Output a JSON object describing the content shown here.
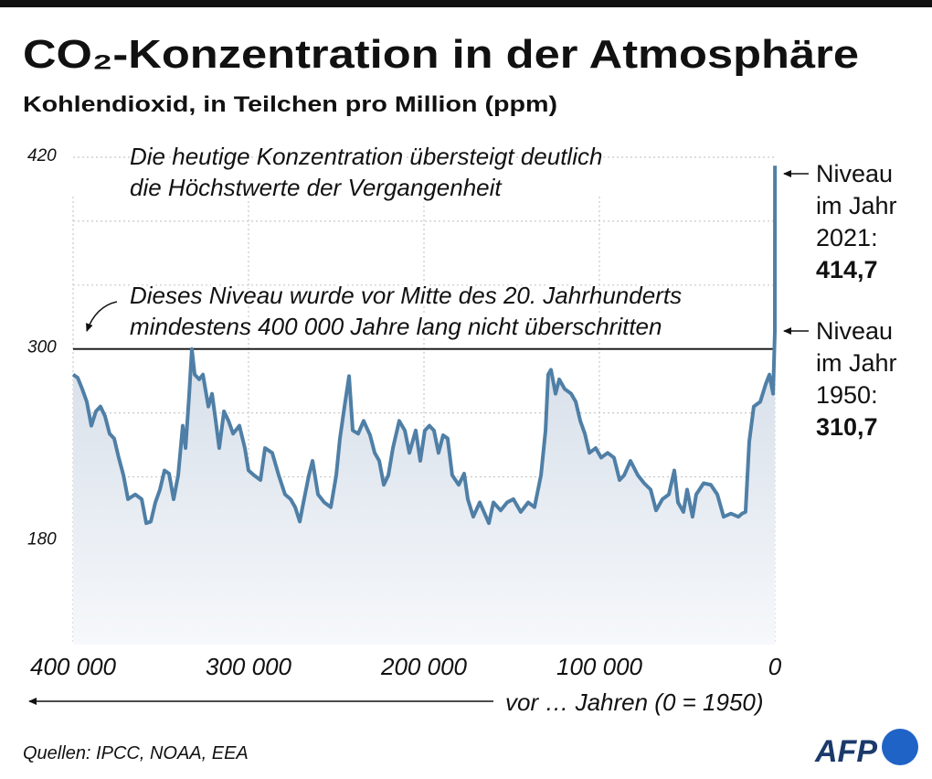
{
  "chart_data": {
    "type": "line",
    "title": "CO₂-Konzentration in der Atmosphäre",
    "subtitle": "Kohlendioxid, in Teilchen pro Million (ppm)",
    "xlabel": "vor … Jahren (0 = 1950)",
    "source": "Quellen: IPCC, NOAA, EEA",
    "logo": "AFP",
    "annotations": [
      [
        "Die heutige Konzentration übersteigt deutlich",
        "die Höchstwerte der Vergangenheit"
      ],
      [
        "Dieses Niveau wurde vor Mitte des 20. Jahrhunderts",
        "mindestens 400 000 Jahre lang nicht überschritten"
      ]
    ],
    "right_notes": [
      [
        "Niveau",
        "im Jahr",
        "2021:"
      ],
      [
        "Niveau",
        "im Jahr",
        "1950:"
      ]
    ],
    "color": "#4f7fa6",
    "x": [
      400000,
      397400,
      394800,
      392200,
      389600,
      387000,
      384400,
      381800,
      379200,
      376600,
      374000,
      371300,
      368700,
      364600,
      360900,
      358300,
      355700,
      353100,
      350500,
      347900,
      345300,
      342700,
      340100,
      337500,
      335900,
      333800,
      332300,
      330700,
      328100,
      326000,
      322900,
      320800,
      318700,
      316700,
      314000,
      311400,
      308800,
      305200,
      302100,
      300000,
      296900,
      293200,
      290600,
      286500,
      282800,
      279200,
      276000,
      273400,
      270800,
      268700,
      265600,
      263500,
      260400,
      256800,
      253100,
      250000,
      247900,
      245300,
      242700,
      240600,
      237500,
      234400,
      230700,
      228100,
      225500,
      222900,
      220300,
      217700,
      214100,
      210900,
      208300,
      204700,
      202100,
      199500,
      196900,
      194300,
      191700,
      189100,
      186500,
      183900,
      180200,
      177100,
      175000,
      171900,
      168200,
      163000,
      160400,
      156300,
      152600,
      149000,
      144800,
      140600,
      137000,
      133300,
      130700,
      129200,
      127600,
      125000,
      122900,
      119800,
      116100,
      113500,
      110900,
      108300,
      105700,
      102100,
      99000,
      95300,
      91700,
      88500,
      85900,
      82300,
      78100,
      74500,
      70800,
      67700,
      64100,
      60400,
      57300,
      55200,
      52100,
      50000,
      46900,
      44800,
      40600,
      36500,
      32800,
      29200,
      25000,
      20800,
      18700,
      16700,
      14600,
      12000,
      8300,
      5200,
      3100,
      1000,
      0,
      -71
    ],
    "values": [
      284,
      282,
      275,
      267,
      252,
      261,
      264,
      258,
      247,
      244,
      232,
      221,
      206,
      209,
      206,
      191,
      192,
      204,
      212,
      224,
      222,
      206,
      221,
      252,
      238,
      272,
      300,
      284,
      281,
      284,
      264,
      272,
      255,
      238,
      261,
      255,
      247,
      252,
      238,
      224,
      221,
      218,
      238,
      235,
      221,
      209,
      206,
      201,
      192,
      204,
      221,
      230,
      209,
      204,
      201,
      221,
      244,
      264,
      283,
      249,
      247,
      255,
      246,
      235,
      230,
      215,
      221,
      238,
      255,
      249,
      235,
      249,
      230,
      249,
      252,
      249,
      235,
      246,
      244,
      221,
      215,
      222,
      206,
      195,
      204,
      191,
      204,
      199,
      204,
      206,
      198,
      204,
      201,
      221,
      249,
      284,
      287,
      272,
      281,
      275,
      272,
      267,
      255,
      247,
      235,
      238,
      232,
      235,
      232,
      218,
      221,
      230,
      221,
      216,
      212,
      199,
      206,
      209,
      224,
      204,
      198,
      212,
      195,
      209,
      216,
      215,
      209,
      195,
      197,
      195,
      197,
      198,
      242,
      264,
      267,
      278,
      284,
      272,
      310.7,
      414.7
    ],
    "value_labels": [
      null,
      null,
      null,
      null,
      null,
      null,
      null,
      null,
      null,
      null,
      null,
      null,
      null,
      null,
      null,
      null,
      null,
      null,
      null,
      null,
      null,
      null,
      null,
      null,
      null,
      null,
      null,
      null,
      null,
      null,
      null,
      null,
      null,
      null,
      null,
      null,
      null,
      null,
      null,
      null,
      null,
      null,
      null,
      null,
      null,
      null,
      null,
      null,
      null,
      null,
      null,
      null,
      null,
      null,
      null,
      null,
      null,
      null,
      null,
      null,
      null,
      null,
      null,
      null,
      null,
      null,
      null,
      null,
      null,
      null,
      null,
      null,
      null,
      null,
      null,
      null,
      null,
      null,
      null,
      null,
      null,
      null,
      null,
      null,
      null,
      null,
      null,
      null,
      null,
      null,
      null,
      null,
      null,
      null,
      null,
      null,
      null,
      null,
      null,
      null,
      null,
      null,
      null,
      null,
      null,
      null,
      null,
      null,
      null,
      null,
      null,
      null,
      null,
      null,
      null,
      null,
      null,
      null,
      null,
      null,
      null,
      null,
      null,
      null,
      null,
      null,
      null,
      null,
      null,
      null,
      null,
      null,
      null,
      null,
      null,
      null,
      null,
      null,
      "310,7",
      "414,7"
    ],
    "xlim": [
      400000,
      0
    ],
    "xticks": [
      {
        "value": 400000,
        "label": "400 000"
      },
      {
        "value": 300000,
        "label": "300 000"
      },
      {
        "value": 200000,
        "label": "200 000"
      },
      {
        "value": 100000,
        "label": "100 000"
      },
      0
    ],
    "ylim": [
      115,
      420
    ],
    "yticks": [
      420,
      300,
      180
    ],
    "ygrid": [
      180,
      220,
      260,
      300,
      340,
      380,
      420
    ],
    "reference_line": 300,
    "grid": true
  }
}
